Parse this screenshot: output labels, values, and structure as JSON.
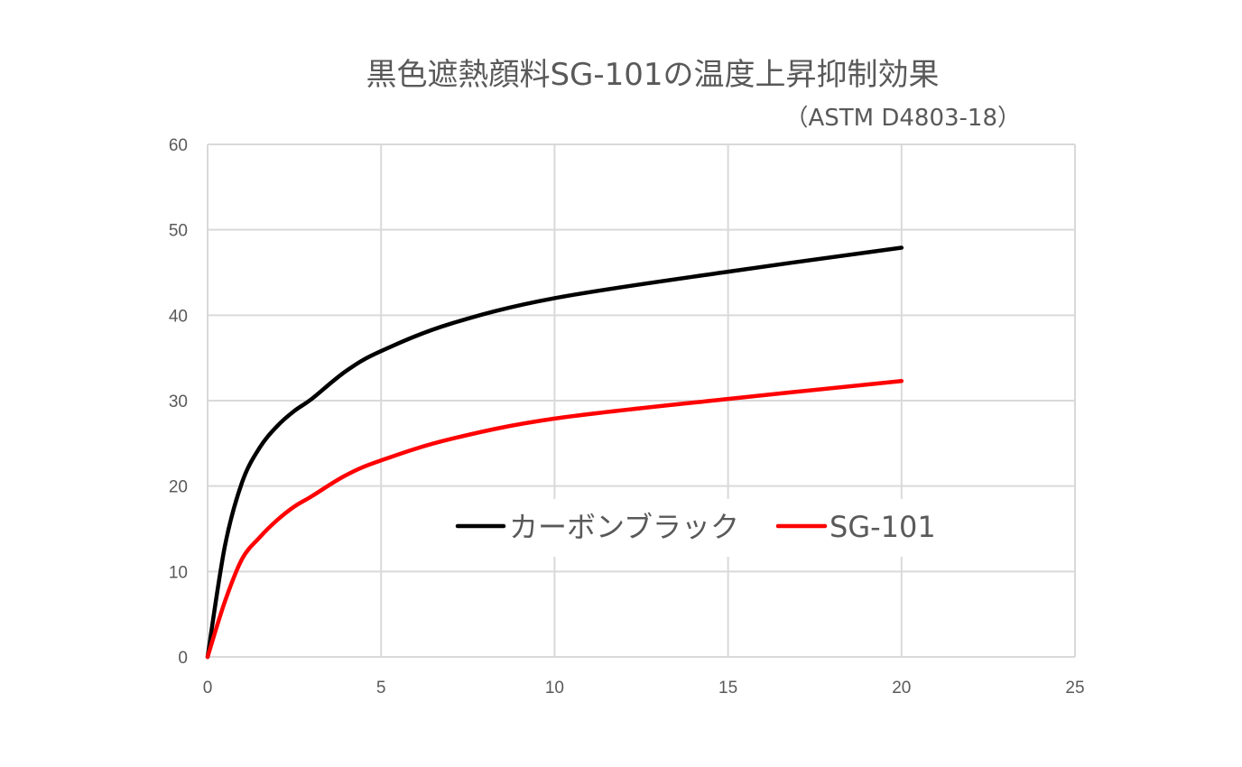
{
  "chart_data": {
    "type": "line",
    "title": "黒色遮熱顔料SG-101の温度上昇抑制効果",
    "subtitle": "（ASTM D4803-18）",
    "xlabel": "",
    "ylabel": "",
    "xlim": [
      0,
      25
    ],
    "ylim": [
      0,
      60
    ],
    "x_ticks": [
      0,
      5,
      10,
      15,
      20,
      25
    ],
    "y_ticks": [
      0,
      10,
      20,
      30,
      40,
      50,
      60
    ],
    "grid": true,
    "legend_position": "center-right",
    "series": [
      {
        "name": "カーボンブラック",
        "color": "#000000",
        "x": [
          0,
          0.5,
          1,
          1.5,
          2,
          2.5,
          3,
          4,
          5,
          7,
          10,
          15,
          20
        ],
        "y": [
          0,
          13,
          20.5,
          24.5,
          27,
          28.8,
          30.2,
          33.5,
          35.8,
          39,
          42,
          45.1,
          47.9
        ]
      },
      {
        "name": "SG-101",
        "color": "#ff0000",
        "x": [
          0,
          0.5,
          1,
          1.5,
          2,
          2.5,
          3,
          4,
          5,
          7,
          10,
          15,
          20
        ],
        "y": [
          0,
          6.5,
          11.5,
          14,
          16,
          17.6,
          18.8,
          21.3,
          23,
          25.5,
          27.9,
          30.2,
          32.3
        ]
      }
    ]
  }
}
